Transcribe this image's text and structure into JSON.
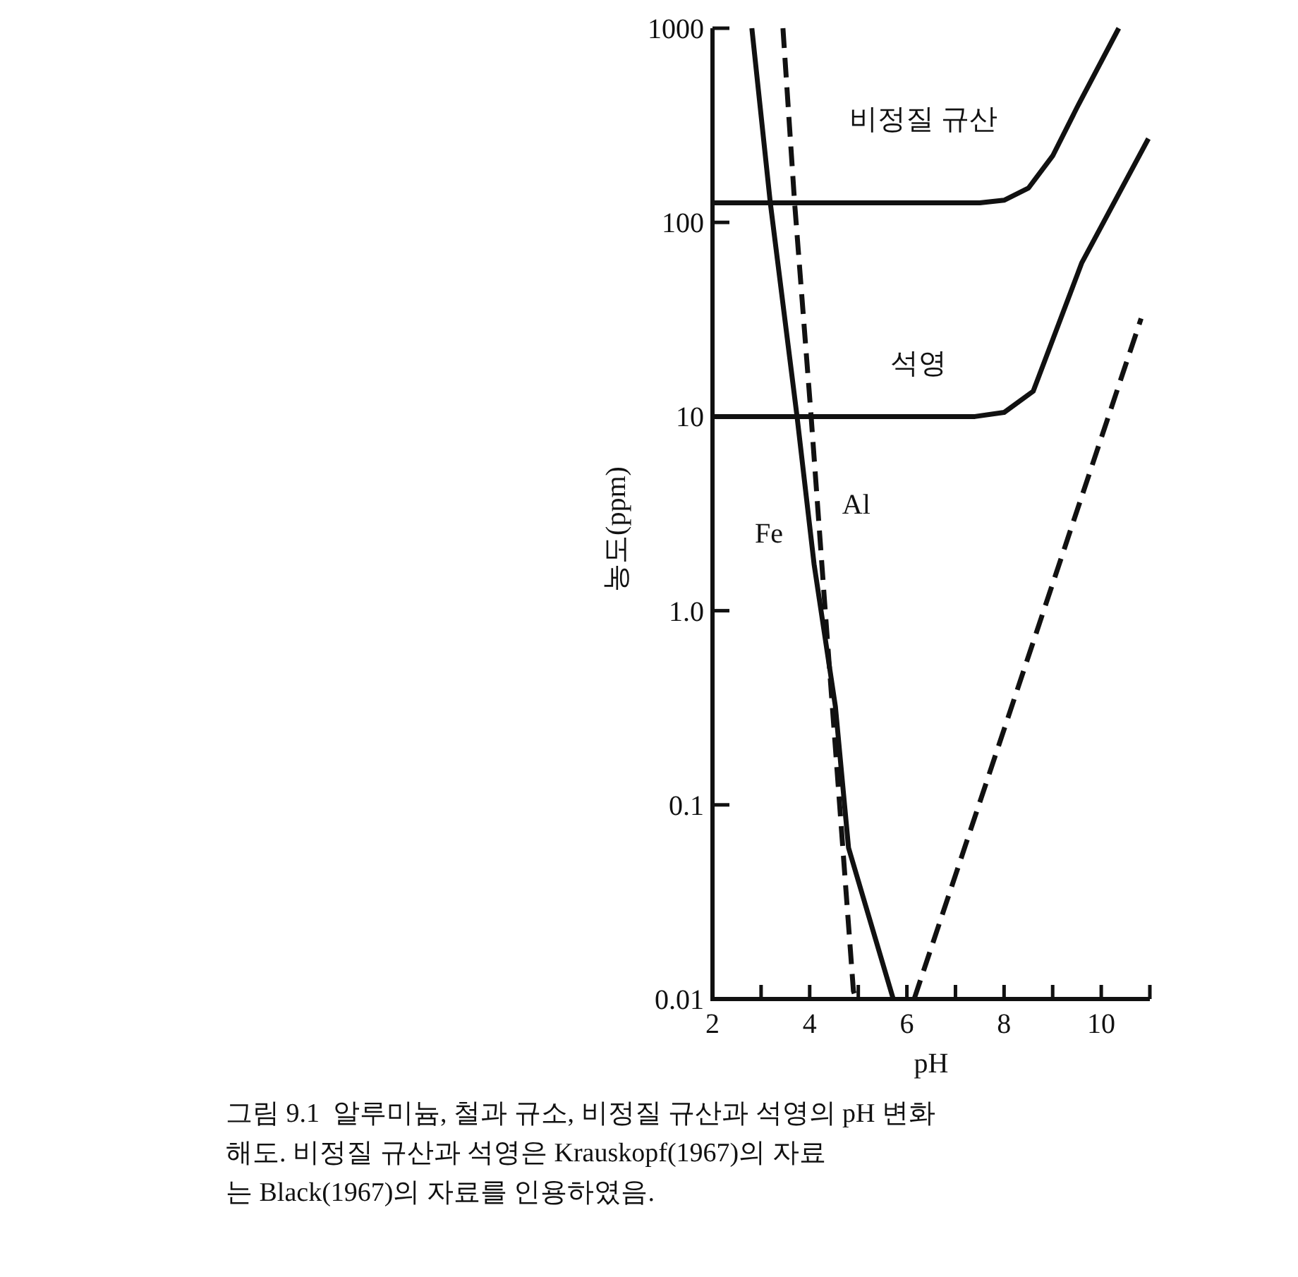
{
  "chart_data": {
    "type": "line",
    "xlabel": "pH",
    "ylabel": "농도(ppm)",
    "log": true,
    "grid": false,
    "xlim": [
      2,
      11
    ],
    "xticks": [
      2,
      {
        "value": 3,
        "label": null
      },
      4,
      {
        "value": 5,
        "label": null
      },
      6,
      {
        "value": 7,
        "label": null
      },
      8,
      {
        "value": 9,
        "label": null
      },
      10,
      {
        "value": 11,
        "label": null
      }
    ],
    "ylim": [
      0.01,
      1000
    ],
    "yticks": [
      0.01,
      0.1,
      {
        "value": 1,
        "label": "1.0"
      },
      10,
      100,
      1000
    ],
    "series": [
      {
        "name": "비정질 규산",
        "color": "#111111",
        "line_style": "solid",
        "x": [
          2,
          7.5,
          8.0,
          8.5,
          9.0,
          9.5,
          10.36
        ],
        "values": [
          126,
          126,
          130,
          150,
          220,
          390,
          1000
        ]
      },
      {
        "name": "석영",
        "color": "#111111",
        "line_style": "solid",
        "x": [
          2,
          7.4,
          8.0,
          8.6,
          9.6,
          10.97
        ],
        "values": [
          10,
          10,
          10.5,
          13.5,
          62,
          270
        ]
      },
      {
        "name": "Fe",
        "color": "#111111",
        "line_style": "solid",
        "x": [
          2.81,
          3.19,
          3.74,
          4.09,
          4.53,
          4.8,
          5.72
        ],
        "values": [
          1000,
          126,
          10,
          1.74,
          0.32,
          0.06,
          0.01
        ]
      },
      {
        "name": "Al",
        "color": "#111111",
        "line_style": "dashed",
        "x": [
          3.45,
          3.69,
          4.03,
          4.32,
          4.9,
          4.96
        ],
        "values": [
          1000,
          126,
          10,
          1.0,
          0.011,
          0.01
        ]
      },
      {
        "color": "#111111",
        "line_style": "dashed",
        "x": [
          6.15,
          10.82
        ],
        "values": [
          0.01,
          32
        ]
      }
    ],
    "annotations": [
      "그림 9.1  알루미늄, 철과 규소, 비정질 규산과 석영의 pH 변화",
      "해도. 비정질 규산과 석영은 Krauskopf(1967)의 자료",
      "는 Black(1967)의 자료를 인용하였음."
    ]
  }
}
